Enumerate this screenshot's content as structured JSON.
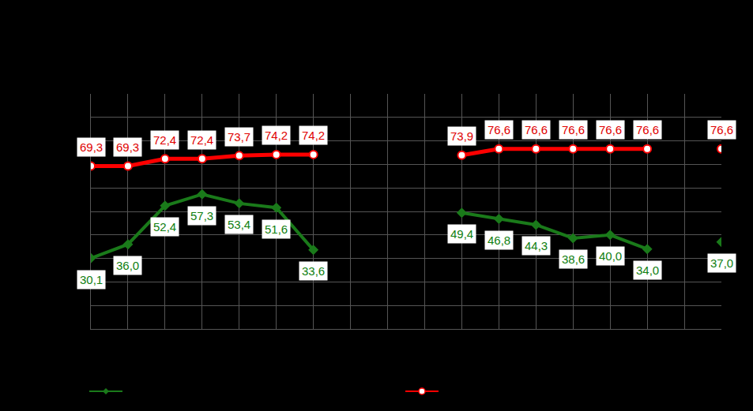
{
  "chart_data": {
    "type": "line",
    "categories": [
      null,
      null,
      null,
      null,
      null,
      null,
      null,
      null,
      null,
      null,
      null,
      null,
      null,
      null,
      null,
      null,
      null,
      null
    ],
    "series": [
      {
        "color": "#ff0000",
        "marker": "hollow-circle",
        "values": [
          69.3,
          69.3,
          72.4,
          72.4,
          73.7,
          74.2,
          74.2,
          null,
          null,
          null,
          73.9,
          76.6,
          76.6,
          76.6,
          76.6,
          76.6,
          null,
          76.6
        ],
        "value_labels": [
          "69,3",
          "69,3",
          "72,4",
          "72,4",
          "73,7",
          "74,2",
          "74,2",
          null,
          null,
          null,
          "73,9",
          "76,6",
          "76,6",
          "76,6",
          "76,6",
          "76,6",
          null,
          "76,6"
        ]
      },
      {
        "color": "#1a7a1a",
        "marker": "diamond",
        "values": [
          30.1,
          36.0,
          52.4,
          57.3,
          53.4,
          51.6,
          33.6,
          null,
          null,
          null,
          49.4,
          46.8,
          44.3,
          38.6,
          40.0,
          34.0,
          null,
          37.0
        ],
        "value_labels": [
          "30,1",
          "36,0",
          "52,4",
          "57,3",
          "53,4",
          "51,6",
          "33,6",
          null,
          null,
          null,
          "49,4",
          "46,8",
          "44,3",
          "38,6",
          "40,0",
          "34,0",
          null,
          "37,0"
        ]
      }
    ],
    "ylim": [
      0,
      100
    ],
    "yticks": [
      0,
      10,
      20,
      30,
      40,
      50,
      60,
      70,
      80,
      90,
      100
    ],
    "grid": true,
    "data_labels": true,
    "tick_labels": false
  }
}
